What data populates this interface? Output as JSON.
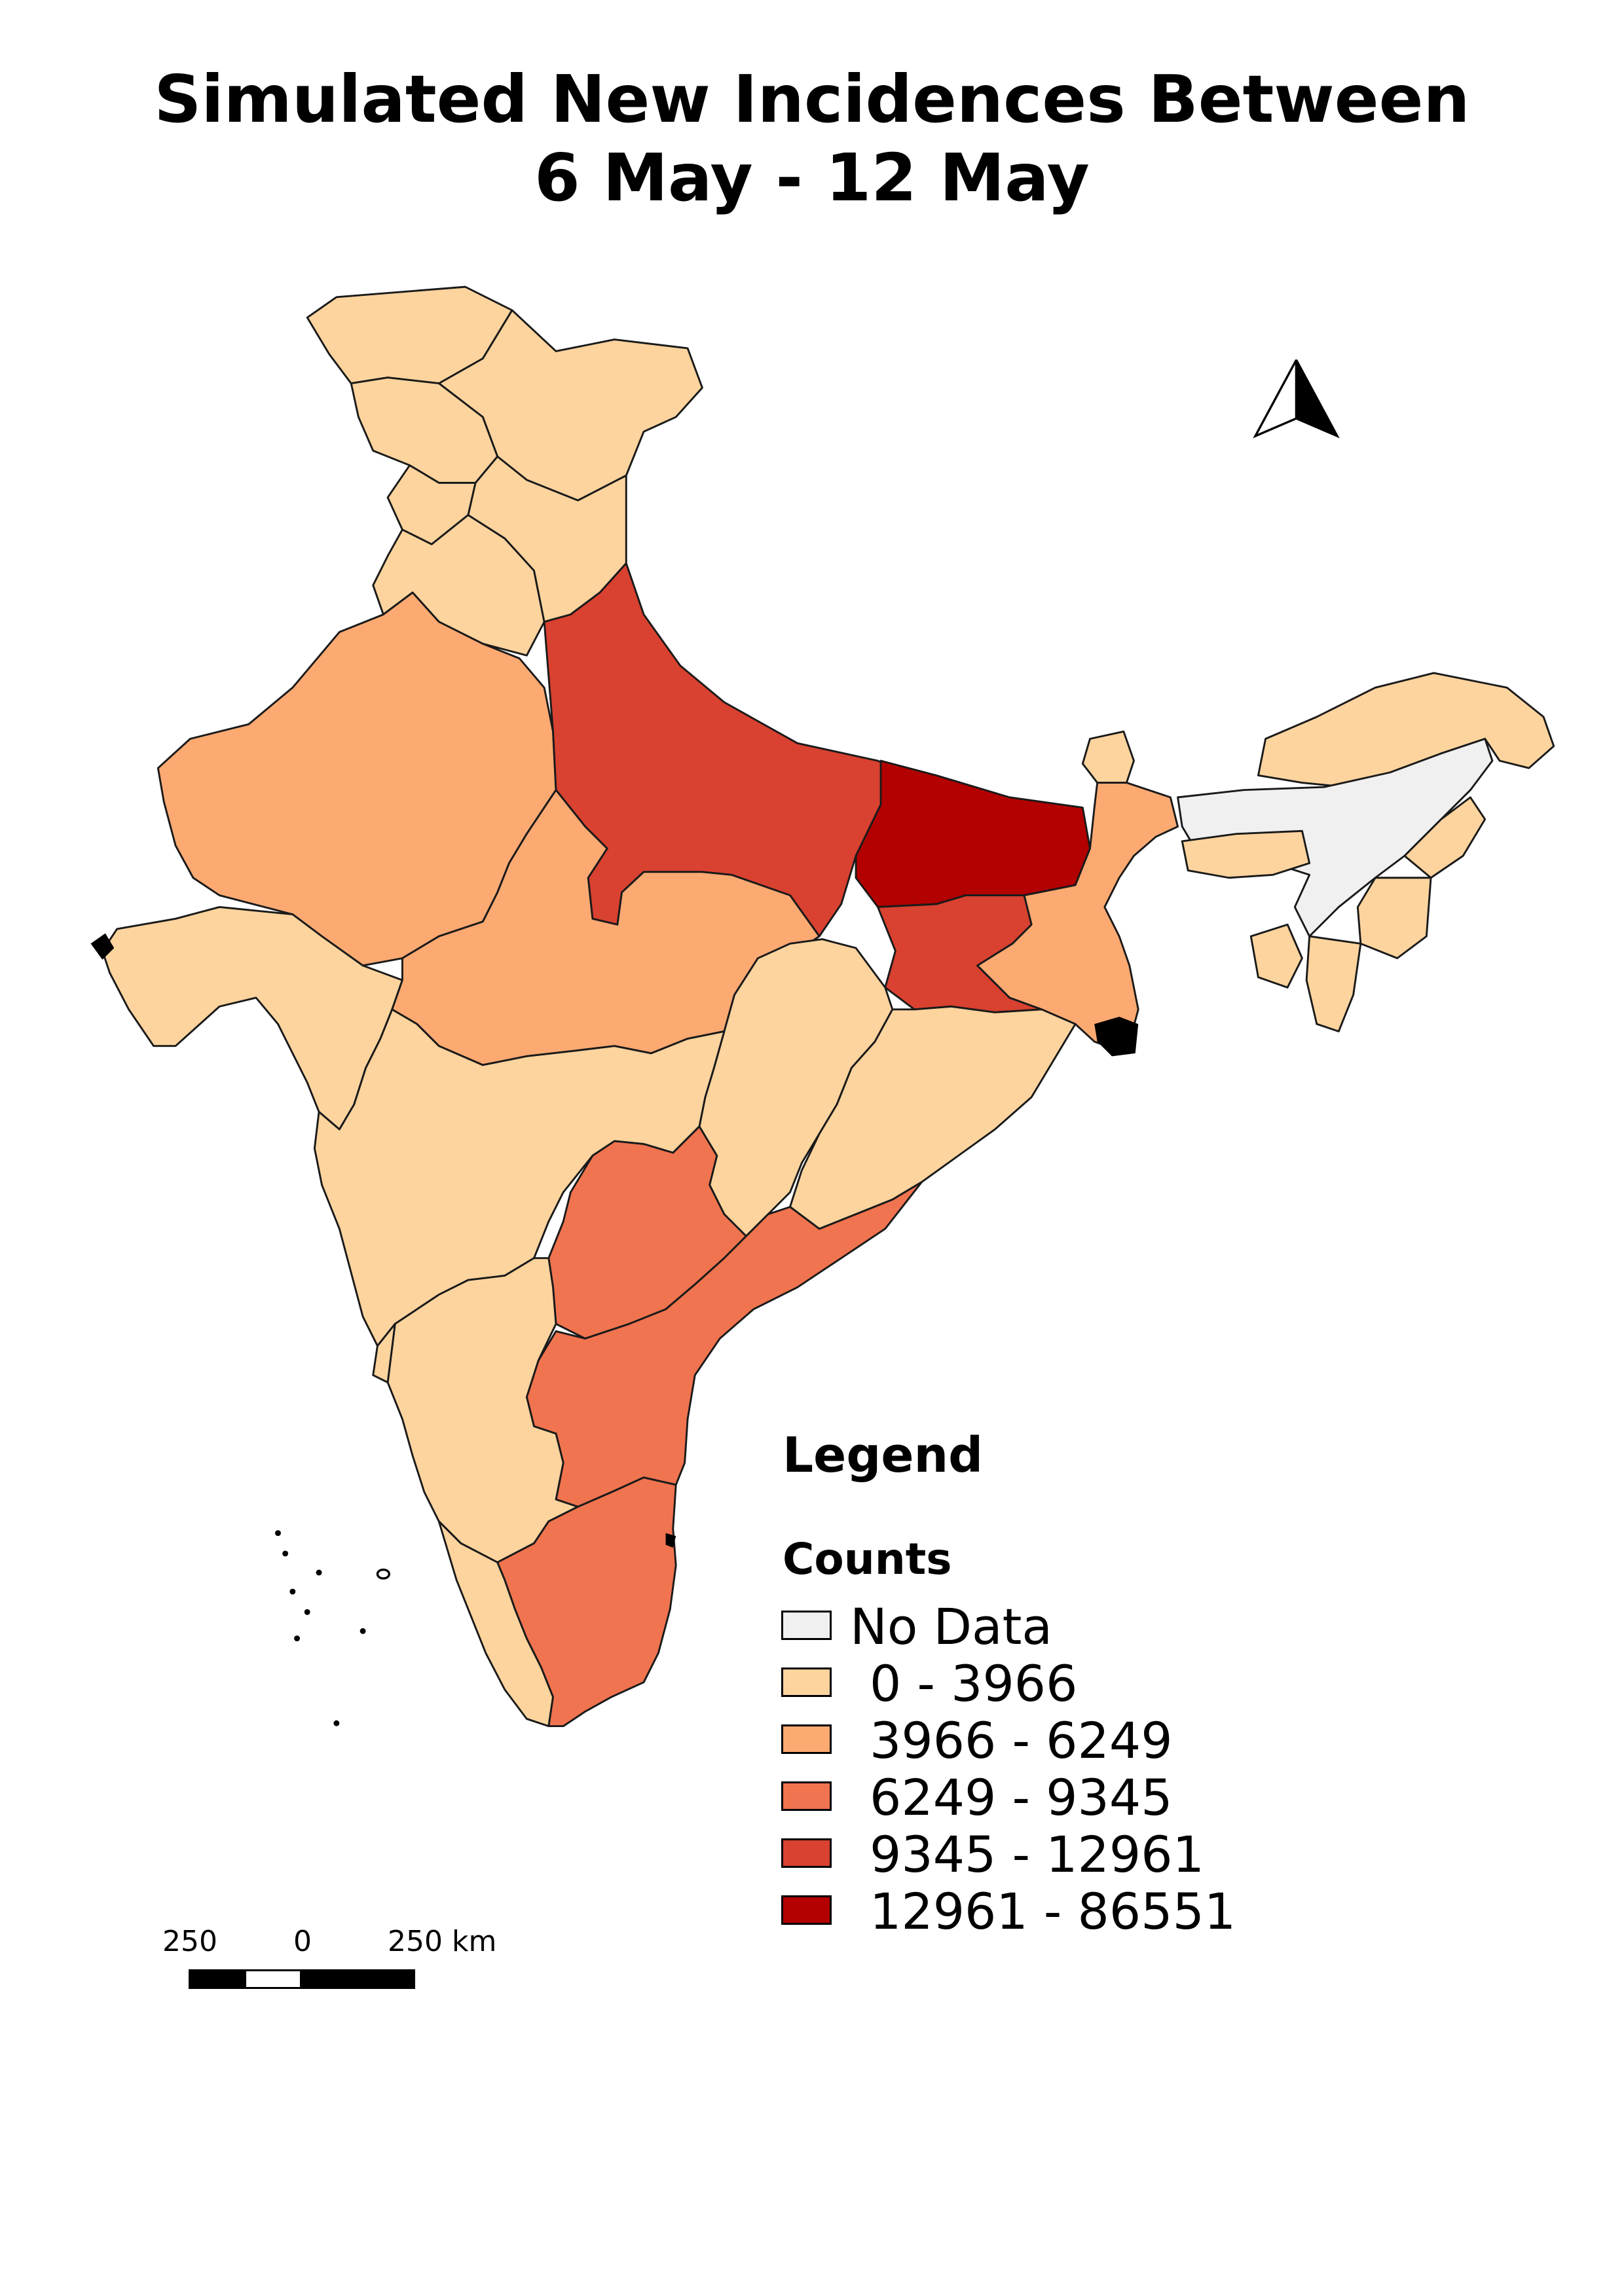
{
  "title": {
    "line1": "Simulated New Incidences Between",
    "line2": "6 May - 12 May"
  },
  "north_arrow": {
    "icon": "north-arrow-icon"
  },
  "legend": {
    "heading": "Legend",
    "subheading": "Counts",
    "items": [
      {
        "label": "No Data",
        "color": "#f0f0f0"
      },
      {
        "label": "0 - 3966",
        "color": "#fdd49e"
      },
      {
        "label": "3966 - 6249",
        "color": "#fcaa72"
      },
      {
        "label": "6249 - 9345",
        "color": "#f0744f"
      },
      {
        "label": "9345 - 12961",
        "color": "#d94130"
      },
      {
        "label": "12961 - 86551",
        "color": "#b30000"
      }
    ]
  },
  "scalebar": {
    "left_label": "250",
    "center_label": "0",
    "right_label": "250 km"
  },
  "regions": [
    {
      "name": "Jammu and Kashmir",
      "class": 1
    },
    {
      "name": "Ladakh",
      "class": 1
    },
    {
      "name": "Himachal Pradesh",
      "class": 1
    },
    {
      "name": "Punjab",
      "class": 1
    },
    {
      "name": "Haryana",
      "class": 1
    },
    {
      "name": "Uttarakhand",
      "class": 1
    },
    {
      "name": "Rajasthan",
      "class": 2
    },
    {
      "name": "Uttar Pradesh",
      "class": 4
    },
    {
      "name": "Bihar",
      "class": 5
    },
    {
      "name": "Sikkim",
      "class": 1
    },
    {
      "name": "Arunachal Pradesh",
      "class": 1
    },
    {
      "name": "Assam",
      "class": 0
    },
    {
      "name": "Meghalaya",
      "class": 1
    },
    {
      "name": "Nagaland",
      "class": 1
    },
    {
      "name": "Manipur",
      "class": 1
    },
    {
      "name": "Mizoram",
      "class": 1
    },
    {
      "name": "Tripura",
      "class": 1
    },
    {
      "name": "West Bengal",
      "class": 2
    },
    {
      "name": "Jharkhand",
      "class": 4
    },
    {
      "name": "Gujarat",
      "class": 1
    },
    {
      "name": "Madhya Pradesh",
      "class": 2
    },
    {
      "name": "Chhattisgarh",
      "class": 1
    },
    {
      "name": "Odisha",
      "class": 1
    },
    {
      "name": "Maharashtra",
      "class": 1
    },
    {
      "name": "Telangana",
      "class": 3
    },
    {
      "name": "Andhra Pradesh",
      "class": 3
    },
    {
      "name": "Karnataka",
      "class": 1
    },
    {
      "name": "Goa",
      "class": 1
    },
    {
      "name": "Kerala",
      "class": 1
    },
    {
      "name": "Tamil Nadu",
      "class": 3
    }
  ]
}
